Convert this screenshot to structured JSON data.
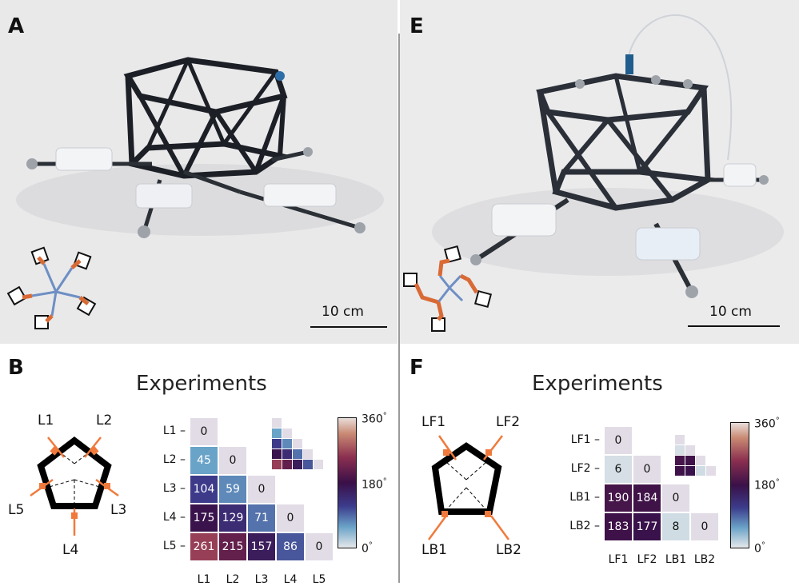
{
  "panels": {
    "A": {
      "letter": "A",
      "scale_label": "10 cm"
    },
    "E": {
      "letter": "E",
      "scale_label": "10 cm"
    },
    "B": {
      "letter": "B",
      "title": "Experiments",
      "legs": [
        "L1",
        "L2",
        "L3",
        "L4",
        "L5"
      ],
      "colorbar": {
        "max": "360",
        "mid": "180",
        "min": "0",
        "unit": "°"
      },
      "matrix": {
        "rows": [
          "L1",
          "L2",
          "L3",
          "L4",
          "L5"
        ],
        "cols": [
          "L1",
          "L2",
          "L3",
          "L4",
          "L5"
        ],
        "values": [
          [
            "0"
          ],
          [
            "45",
            "0"
          ],
          [
            "104",
            "59",
            "0"
          ],
          [
            "175",
            "129",
            "71",
            "0"
          ],
          [
            "261",
            "215",
            "157",
            "86",
            "0"
          ]
        ]
      }
    },
    "F": {
      "letter": "F",
      "title": "Experiments",
      "legs": [
        "LF1",
        "LF2",
        "LB1",
        "LB2"
      ],
      "colorbar": {
        "max": "360",
        "mid": "180",
        "min": "0",
        "unit": "°"
      },
      "matrix": {
        "rows": [
          "LF1",
          "LF2",
          "LB1",
          "LB2"
        ],
        "cols": [
          "LF1",
          "LF2",
          "LB1",
          "LB2"
        ],
        "values": [
          [
            "0"
          ],
          [
            "6",
            "0"
          ],
          [
            "190",
            "184",
            "0"
          ],
          [
            "183",
            "177",
            "8",
            "0"
          ]
        ]
      }
    }
  }
}
